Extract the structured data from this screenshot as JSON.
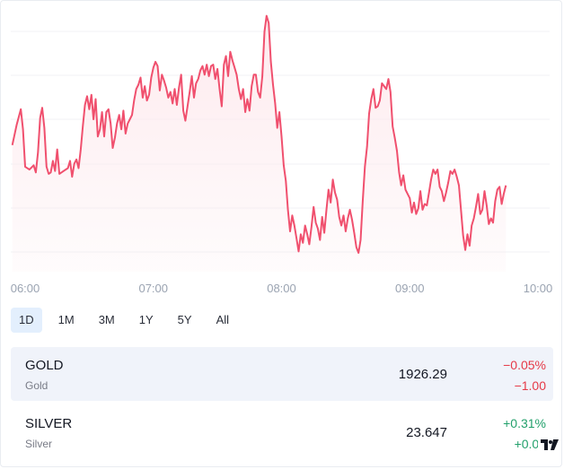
{
  "chart_data": {
    "type": "area",
    "series_color": "#f0506e",
    "fill_color": "#fde8ec",
    "ylim": [
      1920.4,
      1938.0
    ],
    "grid": "horizontal",
    "x_ticks": [
      {
        "label": "06:00",
        "minute": 0
      },
      {
        "label": "07:00",
        "minute": 60
      },
      {
        "label": "08:00",
        "minute": 120
      },
      {
        "label": "09:00",
        "minute": 180
      },
      {
        "label": "10:00",
        "minute": 240
      }
    ],
    "points": [
      [
        -6,
        1928.4
      ],
      [
        -4,
        1929.8
      ],
      [
        -2,
        1930.9
      ],
      [
        -1,
        1929.5
      ],
      [
        0,
        1926.9
      ],
      [
        2,
        1926.7
      ],
      [
        4,
        1927.0
      ],
      [
        5,
        1926.5
      ],
      [
        6,
        1927.9
      ],
      [
        7,
        1930.3
      ],
      [
        8,
        1931.0
      ],
      [
        9,
        1929.6
      ],
      [
        10,
        1926.9
      ],
      [
        11,
        1926.4
      ],
      [
        12,
        1926.5
      ],
      [
        13,
        1927.3
      ],
      [
        14,
        1926.6
      ],
      [
        15,
        1928.1
      ],
      [
        16,
        1926.4
      ],
      [
        18,
        1926.6
      ],
      [
        20,
        1926.8
      ],
      [
        21,
        1927.3
      ],
      [
        22,
        1926.2
      ],
      [
        23,
        1927.1
      ],
      [
        24,
        1927.4
      ],
      [
        25,
        1926.8
      ],
      [
        26,
        1928.1
      ],
      [
        27,
        1929.7
      ],
      [
        28,
        1931.2
      ],
      [
        29,
        1931.8
      ],
      [
        30,
        1930.9
      ],
      [
        31,
        1931.9
      ],
      [
        32,
        1930.2
      ],
      [
        33,
        1931.6
      ],
      [
        34,
        1929.0
      ],
      [
        35,
        1929.5
      ],
      [
        36,
        1930.7
      ],
      [
        37,
        1929.0
      ],
      [
        38,
        1930.7
      ],
      [
        39,
        1930.9
      ],
      [
        40,
        1929.9
      ],
      [
        41,
        1928.2
      ],
      [
        42,
        1928.9
      ],
      [
        43,
        1929.9
      ],
      [
        44,
        1930.5
      ],
      [
        45,
        1929.5
      ],
      [
        46,
        1930.8
      ],
      [
        47,
        1929.2
      ],
      [
        48,
        1929.9
      ],
      [
        49,
        1930.2
      ],
      [
        50,
        1930.5
      ],
      [
        51,
        1931.5
      ],
      [
        52,
        1932.3
      ],
      [
        53,
        1932.6
      ],
      [
        54,
        1933.1
      ],
      [
        55,
        1931.7
      ],
      [
        56,
        1932.5
      ],
      [
        57,
        1931.5
      ],
      [
        58,
        1931.9
      ],
      [
        59,
        1933.1
      ],
      [
        60,
        1933.8
      ],
      [
        61,
        1934.2
      ],
      [
        62,
        1933.9
      ],
      [
        63,
        1932.2
      ],
      [
        64,
        1933.3
      ],
      [
        65,
        1932.9
      ],
      [
        66,
        1932.4
      ],
      [
        67,
        1931.7
      ],
      [
        68,
        1932.1
      ],
      [
        69,
        1931.3
      ],
      [
        70,
        1932.3
      ],
      [
        71,
        1931.2
      ],
      [
        72,
        1932.4
      ],
      [
        73,
        1933.3
      ],
      [
        74,
        1930.8
      ],
      [
        75,
        1930.1
      ],
      [
        76,
        1931.1
      ],
      [
        77,
        1932.1
      ],
      [
        78,
        1933.2
      ],
      [
        79,
        1931.7
      ],
      [
        80,
        1932.7
      ],
      [
        81,
        1933.0
      ],
      [
        82,
        1933.6
      ],
      [
        83,
        1933.9
      ],
      [
        84,
        1933.3
      ],
      [
        85,
        1934.0
      ],
      [
        86,
        1933.2
      ],
      [
        87,
        1933.9
      ],
      [
        88,
        1934.0
      ],
      [
        89,
        1933.0
      ],
      [
        90,
        1933.7
      ],
      [
        91,
        1932.3
      ],
      [
        92,
        1931.1
      ],
      [
        93,
        1934.0
      ],
      [
        94,
        1934.6
      ],
      [
        95,
        1933.2
      ],
      [
        96,
        1934.9
      ],
      [
        97,
        1934.3
      ],
      [
        98,
        1933.8
      ],
      [
        99,
        1933.3
      ],
      [
        100,
        1932.3
      ],
      [
        101,
        1931.6
      ],
      [
        102,
        1932.3
      ],
      [
        103,
        1930.7
      ],
      [
        104,
        1931.6
      ],
      [
        105,
        1930.8
      ],
      [
        106,
        1932.5
      ],
      [
        107,
        1933.3
      ],
      [
        108,
        1933.3
      ],
      [
        109,
        1932.1
      ],
      [
        110,
        1931.7
      ],
      [
        111,
        1933.2
      ],
      [
        112,
        1936.3
      ],
      [
        113,
        1937.4
      ],
      [
        114,
        1936.9
      ],
      [
        115,
        1934.2
      ],
      [
        116,
        1932.6
      ],
      [
        117,
        1931.3
      ],
      [
        118,
        1929.6
      ],
      [
        119,
        1930.7
      ],
      [
        120,
        1929.0
      ],
      [
        121,
        1927.0
      ],
      [
        122,
        1925.9
      ],
      [
        123,
        1923.9
      ],
      [
        124,
        1922.4
      ],
      [
        125,
        1923.5
      ],
      [
        126,
        1922.8
      ],
      [
        127,
        1921.9
      ],
      [
        128,
        1921.0
      ],
      [
        129,
        1922.2
      ],
      [
        130,
        1921.6
      ],
      [
        131,
        1922.8
      ],
      [
        132,
        1922.2
      ],
      [
        133,
        1921.5
      ],
      [
        134,
        1922.7
      ],
      [
        135,
        1924.1
      ],
      [
        136,
        1923.0
      ],
      [
        137,
        1922.6
      ],
      [
        138,
        1921.8
      ],
      [
        139,
        1923.4
      ],
      [
        140,
        1922.3
      ],
      [
        141,
        1923.9
      ],
      [
        142,
        1925.3
      ],
      [
        143,
        1924.4
      ],
      [
        144,
        1926.0
      ],
      [
        145,
        1925.1
      ],
      [
        146,
        1924.6
      ],
      [
        147,
        1923.4
      ],
      [
        148,
        1922.8
      ],
      [
        149,
        1923.5
      ],
      [
        150,
        1922.4
      ],
      [
        151,
        1923.3
      ],
      [
        152,
        1923.9
      ],
      [
        153,
        1923.2
      ],
      [
        154,
        1922.3
      ],
      [
        155,
        1921.3
      ],
      [
        156,
        1920.9
      ],
      [
        157,
        1921.8
      ],
      [
        158,
        1924.5
      ],
      [
        159,
        1926.9
      ],
      [
        160,
        1928.3
      ],
      [
        161,
        1930.6
      ],
      [
        162,
        1931.6
      ],
      [
        163,
        1932.3
      ],
      [
        164,
        1931.0
      ],
      [
        165,
        1931.1
      ],
      [
        166,
        1931.5
      ],
      [
        167,
        1932.7
      ],
      [
        168,
        1932.5
      ],
      [
        169,
        1932.3
      ],
      [
        170,
        1933.0
      ],
      [
        171,
        1932.1
      ],
      [
        172,
        1929.7
      ],
      [
        173,
        1928.9
      ],
      [
        174,
        1928.0
      ],
      [
        175,
        1926.5
      ],
      [
        176,
        1925.6
      ],
      [
        177,
        1926.3
      ],
      [
        178,
        1925.3
      ],
      [
        179,
        1925.0
      ],
      [
        180,
        1924.7
      ],
      [
        181,
        1923.7
      ],
      [
        182,
        1924.4
      ],
      [
        183,
        1923.6
      ],
      [
        184,
        1924.0
      ],
      [
        185,
        1925.2
      ],
      [
        186,
        1923.9
      ],
      [
        187,
        1924.3
      ],
      [
        188,
        1924.2
      ],
      [
        189,
        1925.1
      ],
      [
        190,
        1926.0
      ],
      [
        191,
        1926.7
      ],
      [
        192,
        1926.4
      ],
      [
        193,
        1926.7
      ],
      [
        194,
        1925.5
      ],
      [
        195,
        1925.2
      ],
      [
        196,
        1924.5
      ],
      [
        197,
        1925.1
      ],
      [
        198,
        1925.8
      ],
      [
        199,
        1926.6
      ],
      [
        200,
        1926.4
      ],
      [
        201,
        1926.7
      ],
      [
        202,
        1926.2
      ],
      [
        203,
        1925.6
      ],
      [
        204,
        1923.9
      ],
      [
        205,
        1922.1
      ],
      [
        206,
        1921.1
      ],
      [
        207,
        1922.2
      ],
      [
        208,
        1921.4
      ],
      [
        209,
        1922.8
      ],
      [
        210,
        1923.3
      ],
      [
        211,
        1924.1
      ],
      [
        212,
        1925.0
      ],
      [
        213,
        1923.6
      ],
      [
        214,
        1923.9
      ],
      [
        215,
        1925.2
      ],
      [
        216,
        1924.2
      ],
      [
        217,
        1922.9
      ],
      [
        218,
        1923.3
      ],
      [
        219,
        1923.0
      ],
      [
        220,
        1924.5
      ],
      [
        221,
        1925.3
      ],
      [
        222,
        1925.5
      ],
      [
        223,
        1924.3
      ],
      [
        224,
        1925.0
      ],
      [
        225,
        1925.6
      ]
    ]
  },
  "ranges": [
    "1D",
    "1M",
    "3M",
    "1Y",
    "5Y",
    "All"
  ],
  "active_range": "1D",
  "symbols": [
    {
      "symbol": "GOLD",
      "name": "Gold",
      "price": "1926.29",
      "change_pct": "−0.05%",
      "change_abs": "−1.00",
      "direction": "down",
      "selected": true
    },
    {
      "symbol": "SILVER",
      "name": "Silver",
      "price": "23.647",
      "change_pct": "+0.31%",
      "change_abs": "+0.07",
      "direction": "up",
      "selected": false
    }
  ],
  "logo_icon": "tradingview-logo-icon"
}
